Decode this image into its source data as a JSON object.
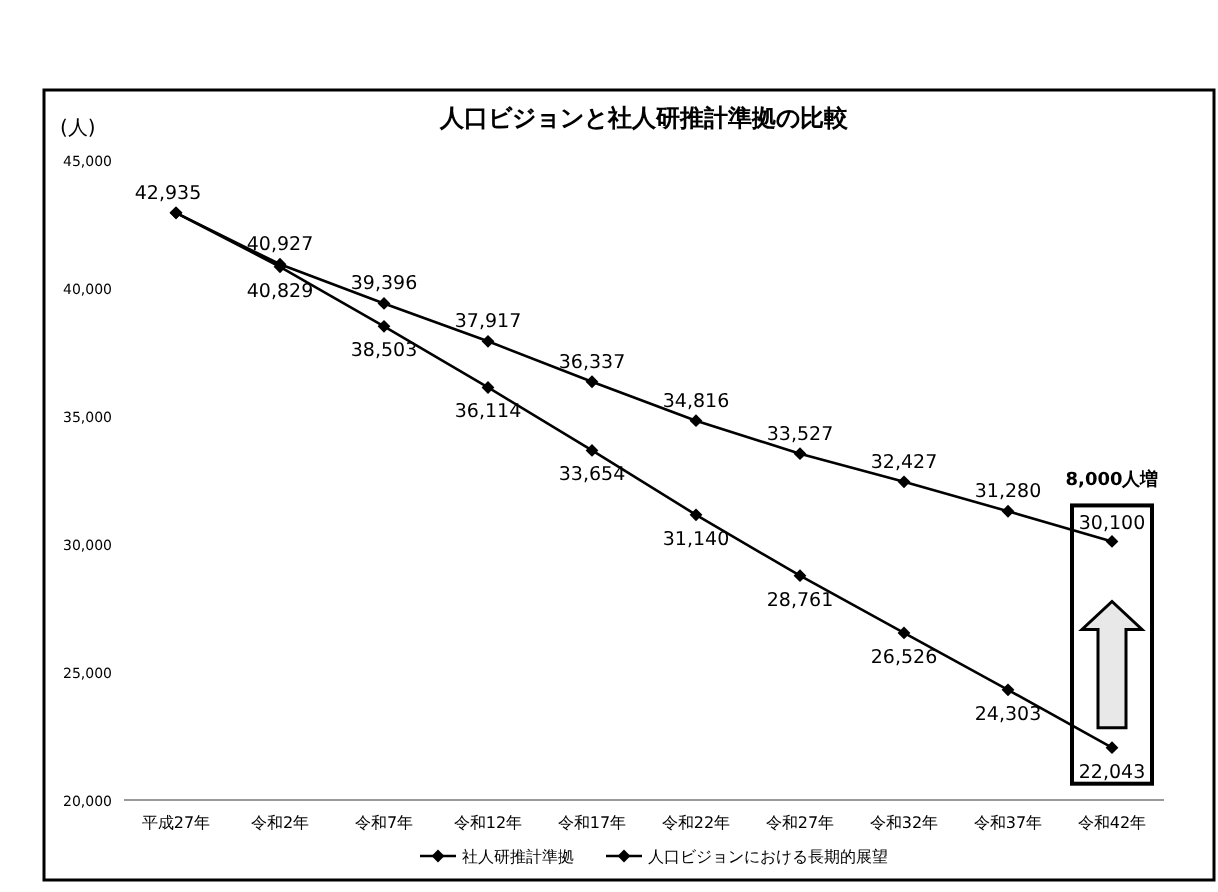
{
  "chart_data": {
    "type": "line",
    "title": "人口ビジョンと社人研推計準拠の比較",
    "ylabel": "(人)",
    "categories": [
      "平成27年",
      "令和2年",
      "令和7年",
      "令和12年",
      "令和17年",
      "令和22年",
      "令和27年",
      "令和32年",
      "令和37年",
      "令和42年"
    ],
    "series": [
      {
        "name": "社人研推計準拠",
        "color": "#000000",
        "values": [
          42935,
          40829,
          38503,
          36114,
          33654,
          31140,
          28761,
          26526,
          24303,
          22043
        ],
        "value_labels": [
          null,
          "40,829",
          "38,503",
          "36,114",
          "33,654",
          "31,140",
          "28,761",
          "26,526",
          "24,303",
          "22,043"
        ]
      },
      {
        "name": "人口ビジョンにおける長期的展望",
        "color": "#000000",
        "values": [
          42935,
          40927,
          39396,
          37917,
          36337,
          34816,
          33527,
          32427,
          31280,
          30100
        ],
        "value_labels": [
          "42,935",
          "40,927",
          "39,396",
          "37,917",
          "36,337",
          "34,816",
          "33,527",
          "32,427",
          "31,280",
          "30,100"
        ]
      }
    ],
    "ylim": [
      20000,
      45000
    ],
    "yticks": [
      {
        "value": 20000,
        "label": "20,000"
      },
      {
        "value": 25000,
        "label": "25,000"
      },
      {
        "value": 30000,
        "label": "30,000"
      },
      {
        "value": 35000,
        "label": "35,000"
      },
      {
        "value": 40000,
        "label": "40,000"
      },
      {
        "value": 45000,
        "label": "45,000"
      }
    ],
    "annotations": [
      {
        "text": "8,000人増",
        "x": "令和42年",
        "y": 30100
      }
    ],
    "marker": "diamond",
    "line_style": "solid",
    "legend": "bottom",
    "grid": false
  }
}
